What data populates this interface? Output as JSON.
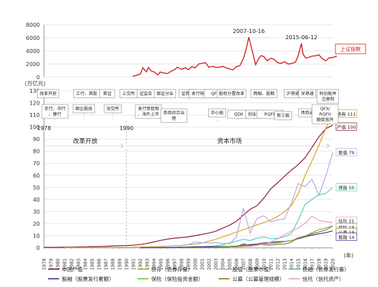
{
  "chart_data": [
    {
      "type": "line",
      "name": "top-index-chart",
      "ylim": [
        0,
        8000
      ],
      "yticks": [
        0,
        2000,
        4000,
        6000,
        8000
      ],
      "color": "#cc1f1f",
      "series": [
        {
          "name": "上证指数",
          "x": [
            1990.9,
            1991.5,
            1992.0,
            1992.4,
            1992.9,
            1993.2,
            1993.6,
            1994.0,
            1994.6,
            1994.9,
            1995.5,
            1996.0,
            1996.5,
            1997.0,
            1997.4,
            1998.0,
            1998.6,
            1999.0,
            1999.5,
            2000.0,
            2000.5,
            2001.0,
            2001.5,
            2002.0,
            2002.5,
            2003.0,
            2003.5,
            2004.0,
            2004.5,
            2005.0,
            2005.5,
            2006.0,
            2006.5,
            2007.0,
            2007.4,
            2007.8,
            2008.3,
            2008.8,
            2009.2,
            2009.6,
            2010.0,
            2010.5,
            2011.0,
            2011.5,
            2012.0,
            2012.5,
            2013.0,
            2013.5,
            2014.0,
            2014.6,
            2015.0,
            2015.45,
            2015.7,
            2016.1,
            2016.5,
            2017.0,
            2017.5,
            2018.0,
            2018.5,
            2019.0,
            2019.5,
            2020.0,
            2020.6
          ],
          "y": [
            130,
            280,
            450,
            1420,
            800,
            1500,
            950,
            800,
            330,
            780,
            600,
            560,
            900,
            1150,
            1500,
            1200,
            1400,
            1150,
            1600,
            1400,
            2000,
            2100,
            2200,
            1500,
            1650,
            1500,
            1500,
            1650,
            1400,
            1250,
            1100,
            1600,
            1750,
            2800,
            4200,
            6100,
            4000,
            1900,
            2800,
            3300,
            3100,
            2500,
            2900,
            2700,
            2200,
            2100,
            2350,
            2000,
            2050,
            2300,
            3300,
            5150,
            3500,
            2900,
            3000,
            3200,
            3250,
            3400,
            2800,
            2500,
            2950,
            3000,
            3200
          ]
        }
      ],
      "label_box": "上证指数",
      "annotations": [
        {
          "text": "2007-10-16",
          "x": 2007.8
        },
        {
          "text": "2015-06-12",
          "x": 2015.45
        }
      ]
    },
    {
      "type": "line",
      "name": "main-chart",
      "ylabel": "(万亿元)",
      "ylim": [
        0,
        130
      ],
      "yticks": [
        0,
        10,
        20,
        30,
        40,
        50,
        60,
        70,
        80,
        90,
        100,
        110,
        120,
        130
      ],
      "xlabel": "(年)",
      "categories": [
        "1978",
        "1979",
        "1980",
        "1981",
        "1982",
        "1983",
        "1984",
        "1985",
        "1986",
        "1987",
        "1988",
        "1989",
        "1990",
        "1991",
        "1992",
        "1993",
        "1994",
        "1995",
        "1996",
        "1997",
        "1998",
        "1999",
        "2000",
        "2001",
        "2002",
        "2003",
        "2004",
        "2005",
        "2006",
        "2007",
        "2008",
        "2009",
        "2010",
        "2011",
        "2012",
        "2013",
        "2014",
        "2015",
        "2016",
        "2017",
        "2018",
        "2019",
        "2020"
      ],
      "series": [
        {
          "name": "中国产值",
          "color": "#8b1a2b",
          "values": [
            0.37,
            0.41,
            0.46,
            0.49,
            0.54,
            0.6,
            0.72,
            0.9,
            1.03,
            1.21,
            1.5,
            1.7,
            1.87,
            2.19,
            2.7,
            3.57,
            4.86,
            6.13,
            7.18,
            7.97,
            8.52,
            9.06,
            10.03,
            11.09,
            12.17,
            13.74,
            16.18,
            18.73,
            21.94,
            27.02,
            31.92,
            34.85,
            41.21,
            48.79,
            53.86,
            59.3,
            64.36,
            68.89,
            74.64,
            83.2,
            91.93,
            98.65,
            101.6
          ]
        },
        {
          "name": "债存（债券存量）",
          "color": "#d6a21c",
          "values": [
            null,
            null,
            null,
            0.05,
            0.08,
            0.1,
            0.12,
            0.15,
            0.2,
            0.25,
            0.3,
            0.35,
            0.4,
            0.5,
            0.6,
            0.7,
            0.9,
            1.1,
            1.3,
            1.6,
            2.0,
            2.5,
            3.0,
            4.0,
            5.5,
            7.0,
            9.0,
            11.0,
            13.0,
            15.0,
            17.0,
            19.0,
            21.0,
            23.0,
            26.0,
            30.0,
            35.0,
            45.0,
            60.0,
            72.0,
            85.0,
            99.0,
            111.0
          ]
        },
        {
          "name": "股值（股票市值）",
          "color": "#b8a6e0",
          "values": [
            null,
            null,
            null,
            null,
            null,
            null,
            null,
            null,
            null,
            null,
            null,
            null,
            0.01,
            0.01,
            0.1,
            0.35,
            0.37,
            0.35,
            1.0,
            1.75,
            1.95,
            2.65,
            4.8,
            4.35,
            3.8,
            4.25,
            3.7,
            3.24,
            8.94,
            32.71,
            12.14,
            24.39,
            26.54,
            21.48,
            23.04,
            23.91,
            37.25,
            53.13,
            50.77,
            56.71,
            43.49,
            59.29,
            79.0
          ]
        },
        {
          "name": "债融（债券发行量）",
          "color": "#59c9c0",
          "values": [
            null,
            null,
            null,
            null,
            null,
            null,
            null,
            null,
            null,
            null,
            null,
            null,
            null,
            null,
            null,
            null,
            0.1,
            0.2,
            0.3,
            0.4,
            0.6,
            0.8,
            0.9,
            1.0,
            1.2,
            1.5,
            2.5,
            4.0,
            5.5,
            7.0,
            6.0,
            8.0,
            9.0,
            7.5,
            8.0,
            9.0,
            12.0,
            23.0,
            36.0,
            40.0,
            44.0,
            45.0,
            50.0
          ]
        },
        {
          "name": "股融（股票发行累额）",
          "color": "#3b2a8f",
          "values": [
            null,
            null,
            null,
            null,
            null,
            null,
            null,
            null,
            null,
            null,
            null,
            null,
            null,
            null,
            0.01,
            0.04,
            0.06,
            0.08,
            0.12,
            0.25,
            0.35,
            0.45,
            0.6,
            0.75,
            0.85,
            0.95,
            1.1,
            1.15,
            1.4,
            2.2,
            2.6,
            3.1,
            4.0,
            4.5,
            4.9,
            5.2,
            6.0,
            7.5,
            9.0,
            10.5,
            11.5,
            12.5,
            14.0
          ]
        },
        {
          "name": "保险（保险投资金额）",
          "color": "#6bbf3f",
          "values": [
            null,
            null,
            null,
            null,
            null,
            null,
            null,
            null,
            null,
            null,
            null,
            null,
            null,
            null,
            null,
            null,
            null,
            null,
            null,
            null,
            null,
            null,
            0.1,
            0.2,
            0.3,
            0.5,
            0.8,
            1.0,
            1.2,
            1.5,
            2.0,
            2.5,
            3.0,
            3.5,
            4.0,
            5.0,
            6.0,
            8.0,
            10.0,
            12.5,
            15.0,
            16.5,
            18.0
          ]
        },
        {
          "name": "公募（公募管理规模）",
          "color": "#9a6b2e",
          "values": [
            null,
            null,
            null,
            null,
            null,
            null,
            null,
            null,
            null,
            null,
            null,
            null,
            null,
            null,
            null,
            null,
            null,
            null,
            null,
            null,
            0.01,
            0.05,
            0.08,
            0.1,
            0.13,
            0.16,
            0.32,
            0.47,
            0.86,
            3.28,
            1.94,
            2.68,
            2.52,
            2.19,
            2.87,
            3.0,
            4.54,
            8.4,
            9.16,
            11.6,
            13.0,
            14.8,
            18.0
          ]
        },
        {
          "name": "信托（信托资产）",
          "color": "#e89ac7",
          "values": [
            null,
            null,
            null,
            null,
            null,
            null,
            null,
            null,
            null,
            null,
            null,
            null,
            null,
            null,
            null,
            null,
            null,
            null,
            null,
            null,
            null,
            null,
            null,
            null,
            null,
            null,
            null,
            0.1,
            0.3,
            0.95,
            1.22,
            2.02,
            3.04,
            4.81,
            7.47,
            10.91,
            13.98,
            16.3,
            20.22,
            26.25,
            22.7,
            21.6,
            21.0
          ]
        }
      ],
      "end_labels": [
        {
          "text": "债券 111",
          "value": 111,
          "color": "#d6a21c"
        },
        {
          "text": "产值 100",
          "value": 100,
          "color": "#8b1a2b"
        },
        {
          "text": "股值 79",
          "value": 79,
          "color": "#b8a6e0"
        },
        {
          "text": "债融 50",
          "value": 50,
          "color": "#59c9c0"
        },
        {
          "text": "信托 21",
          "value": 21,
          "color": "#e89ac7"
        },
        {
          "text": "保险 18",
          "value": 18,
          "color": "#6bbf3f"
        },
        {
          "text": "公募 18",
          "value": 18,
          "color": "#9a6b2e"
        },
        {
          "text": "股融 14",
          "value": 14,
          "color": "#3b2a8f"
        }
      ],
      "eras": [
        {
          "text": "改革开放",
          "start": "1978",
          "end": "1990"
        },
        {
          "text": "资本市场",
          "start": "1990",
          "end": "2020"
        }
      ],
      "era_years": [
        "1978",
        "1990"
      ],
      "events_top": [
        {
          "text": "改革开放",
          "x": 1978.6,
          "target": 1978.6
        },
        {
          "text": "工行、首股",
          "x": 1984.2,
          "target": 1984.2
        },
        {
          "text": "首证",
          "x": 1987.2,
          "target": 1987.2
        },
        {
          "text": "上交所",
          "x": 1990.3,
          "target": 1990.3
        },
        {
          "text": "证监会",
          "x": 1992.8,
          "target": 1992.8
        },
        {
          "text": "银证分业",
          "x": 1995.6,
          "target": 1995.6
        },
        {
          "text": "证券法",
          "x": 1998.9,
          "target": 1998.9
        },
        {
          "text": "发行核准制",
          "x": 2001.0,
          "target": 2001.0
        },
        {
          "text": "QFII",
          "x": 2002.9,
          "target": 2002.9
        },
        {
          "text": "股权分置改革",
          "x": 2005.3,
          "target": 2005.3
        },
        {
          "text": "两融、股期",
          "x": 2010.0,
          "target": 2010.0
        },
        {
          "text": "沪港通",
          "x": 2014.2,
          "target": 2014.2
        },
        {
          "text": "深港通",
          "x": 2016.3,
          "target": 2016.3
        },
        {
          "text": "科创板并注册制",
          "x": 2019.3,
          "target": 2019.3
        }
      ],
      "events_mid": [
        {
          "text": "农行、中行、建行",
          "x": 1979.6,
          "target": 1979.6,
          "row": 1
        },
        {
          "text": "国企股改",
          "x": 1983.8,
          "target": 1983.8,
          "row": 1
        },
        {
          "text": "深交所",
          "x": 1988.0,
          "target": 1988.0,
          "row": 1
        },
        {
          "text": "发行审批制、海外上市",
          "x": 1993.2,
          "target": 1993.2,
          "row": 1
        },
        {
          "text": "券商综合治理",
          "x": 1996.9,
          "target": 1996.9,
          "row": 2
        },
        {
          "text": "中小板",
          "x": 2003.2,
          "target": 2003.2,
          "row": 2
        },
        {
          "text": "QDII",
          "x": 2006.3,
          "target": 2006.3,
          "row": 3
        },
        {
          "text": "创业板",
          "x": 2008.6,
          "target": 2008.6,
          "row": 3
        },
        {
          "text": "RQFII",
          "x": 2010.9,
          "target": 2010.9,
          "row": 3
        },
        {
          "text": "新三板",
          "x": 2012.8,
          "target": 2012.8,
          "row": 4
        },
        {
          "text": "债券通",
          "x": 2016.3,
          "target": 2016.3,
          "row": 2
        },
        {
          "text": "QFII/RQFII额度放开",
          "x": 2018.9,
          "target": 2018.9,
          "row": 1
        }
      ]
    }
  ]
}
